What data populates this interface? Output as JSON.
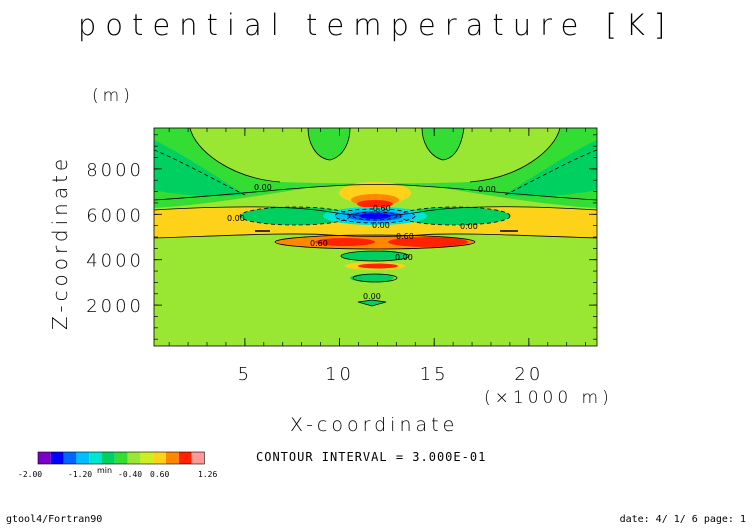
{
  "chart_data": {
    "type": "contour",
    "title": "potential temperature [K]",
    "xlabel": "X-coordinate",
    "x_unit": "(×1000 m)",
    "ylabel": "Z-coordinate",
    "y_unit": "(m)",
    "xlim": [
      0.2,
      23.6
    ],
    "ylim": [
      200,
      9800
    ],
    "x_ticks": [
      "5",
      "10",
      "15",
      "20"
    ],
    "y_ticks": [
      "2000",
      "4000",
      "6000",
      "8000"
    ],
    "contour_labels": [
      "0.00",
      "0.00",
      "0.00",
      "0.00",
      "-0.60",
      "0.60",
      "0.60",
      "0.00",
      "0.00",
      "0.00"
    ],
    "contour_interval": "CONTOUR INTERVAL = 3.000E-01",
    "colorbar": {
      "colors": [
        "#7a00c8",
        "#0000ff",
        "#0066ff",
        "#00bfff",
        "#00e5d0",
        "#00d060",
        "#33dd33",
        "#99e633",
        "#ccee22",
        "#ffd21a",
        "#ff8800",
        "#ff2200",
        "#ff9999"
      ],
      "tick_labels": [
        "-2.00",
        "-1.20",
        "-0.40",
        "0.60",
        "1.26"
      ],
      "overlay_label": "min"
    }
  },
  "footer": {
    "left": "gtool4/Fortran90",
    "right": "date: 4/ 1/ 6 page: 1"
  }
}
